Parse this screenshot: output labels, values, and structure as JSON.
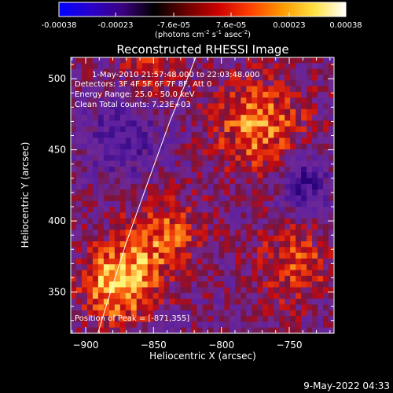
{
  "colorbar": {
    "ticks": [
      "-0.00038",
      "-0.00023",
      "-7.6e-05",
      "7.6e-05",
      "0.00023",
      "0.00038"
    ],
    "tick_values": [
      -0.00038,
      -0.00023,
      -7.6e-05,
      7.6e-05,
      0.00023,
      0.00038
    ],
    "range": [
      -0.00038,
      0.00038
    ],
    "unit_prefix": "(photons cm",
    "unit_exp1": "-2",
    "unit_mid": " s",
    "unit_exp2": "-1",
    "unit_mid2": " asec",
    "unit_exp3": "-2",
    "unit_suffix": ")",
    "colors": [
      "#0000ff",
      "#2a00cc",
      "#3b0080",
      "#000000",
      "#6b0000",
      "#cc0000",
      "#ff4000",
      "#ff9900",
      "#ffe040",
      "#ffffff"
    ]
  },
  "annotations": {
    "time_range": "1-May-2010 21:57:48.000 to 22:03:48.000",
    "detectors": "Detectors: 3F 4F 5F 6F 7F 8F, Att 0",
    "energy": "Energy Range: 25.0 - 50.0 keV",
    "clean": "Clean     Total counts: 7.23E+03",
    "peak": "Position of Peak = [-871,355]"
  },
  "footer": {
    "date": "9-May-2022 04:33"
  },
  "chart_data": {
    "type": "heatmap",
    "title": "Reconstructed RHESSI Image",
    "xlabel": "Heliocentric X (arcsec)",
    "ylabel": "Heliocentric Y (arcsec)",
    "xlim": [
      -911,
      -717
    ],
    "ylim": [
      321,
      515
    ],
    "xticks": [
      -900,
      -850,
      -800,
      -750
    ],
    "xtick_labels": [
      "−900",
      "−850",
      "−800",
      "−750"
    ],
    "yticks": [
      350,
      400,
      450,
      500
    ],
    "ytick_labels": [
      "350",
      "400",
      "450",
      "500"
    ],
    "peak": [
      -871,
      355
    ],
    "limb_points": [
      [
        -891,
        321
      ],
      [
        -885,
        340
      ],
      [
        -870,
        385
      ],
      [
        -855,
        425
      ],
      [
        -838,
        470
      ],
      [
        -823,
        505
      ],
      [
        -819,
        515
      ]
    ]
  }
}
